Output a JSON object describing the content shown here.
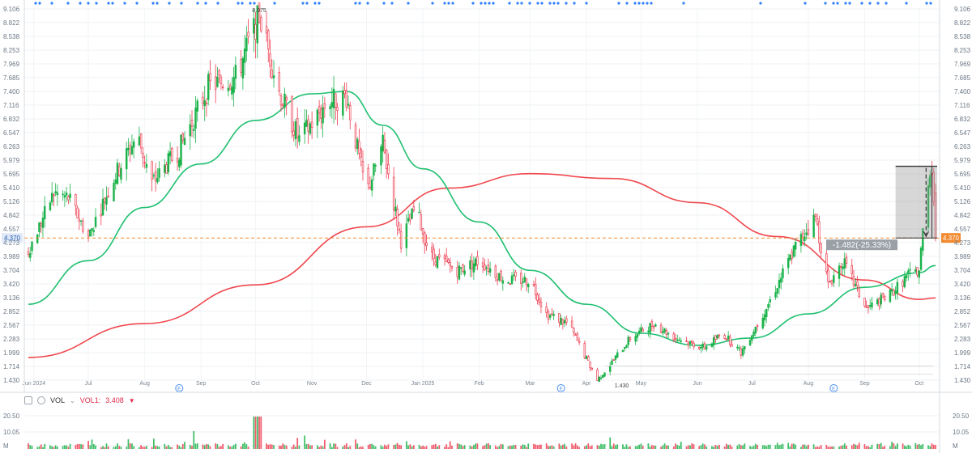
{
  "price_axis": {
    "ticks": [
      "9.106",
      "8.822",
      "8.538",
      "8.253",
      "7.969",
      "7.685",
      "7.400",
      "7.116",
      "6.832",
      "6.547",
      "6.263",
      "5.979",
      "5.695",
      "5.410",
      "5.126",
      "4.842",
      "4.557",
      "4.273",
      "3.989",
      "3.704",
      "3.420",
      "3.136",
      "2.852",
      "2.567",
      "2.283",
      "1.999",
      "1.714",
      "1.430"
    ],
    "current_price": "4.370"
  },
  "time_axis": {
    "labels": [
      "Jun 2024",
      "Jul",
      "Aug",
      "Sep",
      "Oct",
      "Nov",
      "Dec",
      "Jan 2025",
      "Feb",
      "Mar",
      "Apr",
      "May",
      "Jun",
      "Jul",
      "Aug",
      "Sep",
      "Oct"
    ]
  },
  "annotations": {
    "high_label": "8.975",
    "low_label": "1.430",
    "measure_label": "-1.482(-25.33%)",
    "earnings_marker": "E"
  },
  "volume_panel": {
    "vol_label": "VOL",
    "indicator_label": "VOL1:",
    "indicator_value": "3.408",
    "ticks": [
      "20.50",
      "10.05",
      "M"
    ]
  },
  "colors": {
    "up": "#1bb34a",
    "down": "#ef3b4f",
    "ma_short": "#20c070",
    "ma_long": "#f0484e",
    "current_line": "#f28a30",
    "dot": "#2f7fff",
    "earnings": "#4a8ff0"
  },
  "chart_data": {
    "type": "candlestick",
    "x_range": [
      "2024-05-29",
      "2025-10-10"
    ],
    "y_range": [
      1.43,
      9.106
    ],
    "high": 8.975,
    "low": 1.43,
    "last_close": 4.37,
    "swing_points": [
      [
        "2024-05-29",
        4.1
      ],
      [
        "2024-06-12",
        5.3
      ],
      [
        "2024-06-20",
        5.2
      ],
      [
        "2024-07-01",
        4.4
      ],
      [
        "2024-07-15",
        5.6
      ],
      [
        "2024-07-28",
        6.5
      ],
      [
        "2024-08-05",
        5.5
      ],
      [
        "2024-08-20",
        6.2
      ],
      [
        "2024-09-05",
        7.5
      ],
      [
        "2024-09-20",
        7.7
      ],
      [
        "2024-10-03",
        8.975
      ],
      [
        "2024-10-14",
        7.4
      ],
      [
        "2024-10-25",
        6.4
      ],
      [
        "2024-11-10",
        7.2
      ],
      [
        "2024-11-20",
        7.3
      ],
      [
        "2024-12-01",
        5.3
      ],
      [
        "2024-12-10",
        6.3
      ],
      [
        "2024-12-20",
        4.3
      ],
      [
        "2024-12-28",
        5.0
      ],
      [
        "2025-01-05",
        4.0
      ],
      [
        "2025-01-20",
        3.7
      ],
      [
        "2025-02-01",
        3.9
      ],
      [
        "2025-02-15",
        3.5
      ],
      [
        "2025-03-01",
        3.5
      ],
      [
        "2025-03-10",
        2.8
      ],
      [
        "2025-03-22",
        2.6
      ],
      [
        "2025-04-07",
        1.43
      ],
      [
        "2025-04-15",
        1.8
      ],
      [
        "2025-04-25",
        2.3
      ],
      [
        "2025-05-08",
        2.6
      ],
      [
        "2025-05-20",
        2.3
      ],
      [
        "2025-06-05",
        2.1
      ],
      [
        "2025-06-15",
        2.4
      ],
      [
        "2025-06-25",
        2.0
      ],
      [
        "2025-07-10",
        3.0
      ],
      [
        "2025-07-25",
        4.2
      ],
      [
        "2025-08-05",
        4.8
      ],
      [
        "2025-08-12",
        3.4
      ],
      [
        "2025-08-20",
        3.9
      ],
      [
        "2025-09-02",
        2.9
      ],
      [
        "2025-09-15",
        3.2
      ],
      [
        "2025-09-25",
        3.6
      ],
      [
        "2025-10-01",
        3.7
      ],
      [
        "2025-10-03",
        4.5
      ],
      [
        "2025-10-06",
        5.6
      ],
      [
        "2025-10-08",
        5.852
      ],
      [
        "2025-10-10",
        4.37
      ]
    ],
    "ma_short": [
      [
        "2024-05-29",
        3.0
      ],
      [
        "2024-07-01",
        3.9
      ],
      [
        "2024-08-01",
        5.0
      ],
      [
        "2024-09-01",
        5.9
      ],
      [
        "2024-10-01",
        6.8
      ],
      [
        "2024-11-01",
        7.35
      ],
      [
        "2024-11-20",
        7.4
      ],
      [
        "2024-12-10",
        6.7
      ],
      [
        "2025-01-01",
        5.8
      ],
      [
        "2025-02-01",
        4.7
      ],
      [
        "2025-03-01",
        3.7
      ],
      [
        "2025-04-01",
        3.0
      ],
      [
        "2025-05-01",
        2.4
      ],
      [
        "2025-06-01",
        2.15
      ],
      [
        "2025-07-01",
        2.3
      ],
      [
        "2025-08-01",
        2.8
      ],
      [
        "2025-09-01",
        3.35
      ],
      [
        "2025-10-01",
        3.65
      ],
      [
        "2025-10-10",
        3.8
      ]
    ],
    "ma_long": [
      [
        "2024-05-29",
        1.9
      ],
      [
        "2024-08-01",
        2.6
      ],
      [
        "2024-10-01",
        3.4
      ],
      [
        "2024-12-01",
        4.6
      ],
      [
        "2025-01-15",
        5.4
      ],
      [
        "2025-03-01",
        5.7
      ],
      [
        "2025-04-15",
        5.6
      ],
      [
        "2025-06-01",
        5.1
      ],
      [
        "2025-07-15",
        4.4
      ],
      [
        "2025-09-01",
        3.5
      ],
      [
        "2025-10-01",
        3.1
      ],
      [
        "2025-10-10",
        3.13
      ]
    ],
    "measure": {
      "from": 5.852,
      "to": 4.37,
      "change": -1.482,
      "change_pct": -25.33
    }
  }
}
